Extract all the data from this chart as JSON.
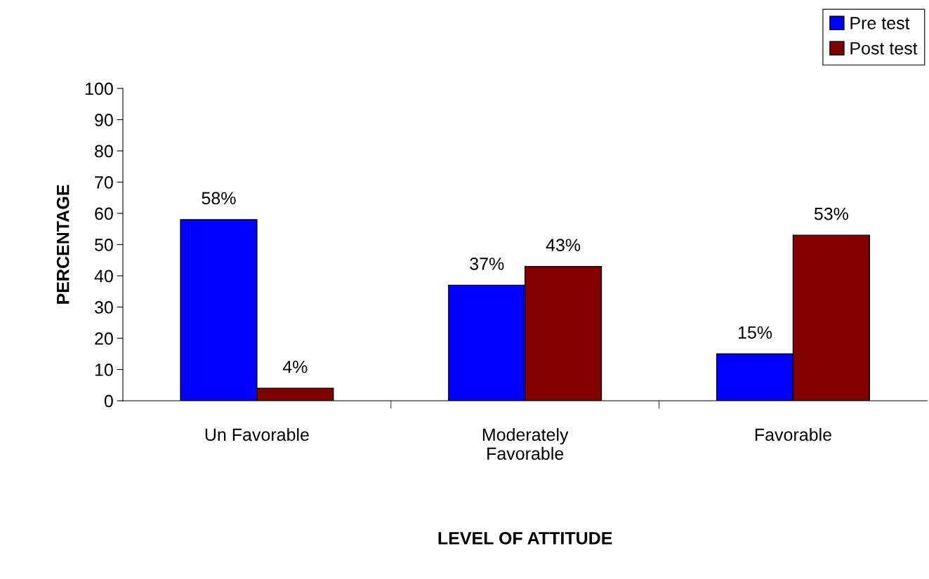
{
  "chart_data": {
    "type": "bar",
    "xlabel": "LEVEL OF ATTITUDE",
    "ylabel": "PERCENTAGE",
    "categories": [
      "Un Favorable",
      "Moderately\nFavorable",
      "Favorable"
    ],
    "series": [
      {
        "name": "Pre test",
        "color": "#0000ff",
        "values": [
          58,
          37,
          15
        ],
        "value_labels": [
          "58%",
          "37%",
          "15%"
        ]
      },
      {
        "name": "Post test",
        "color": "#800000",
        "values": [
          4,
          43,
          53
        ],
        "value_labels": [
          "4%",
          "43%",
          "53%"
        ]
      }
    ],
    "ylim": [
      0,
      100
    ],
    "yticks": [
      0,
      10,
      20,
      30,
      40,
      50,
      60,
      70,
      80,
      90,
      100
    ],
    "grid": false,
    "legend": "top right"
  }
}
